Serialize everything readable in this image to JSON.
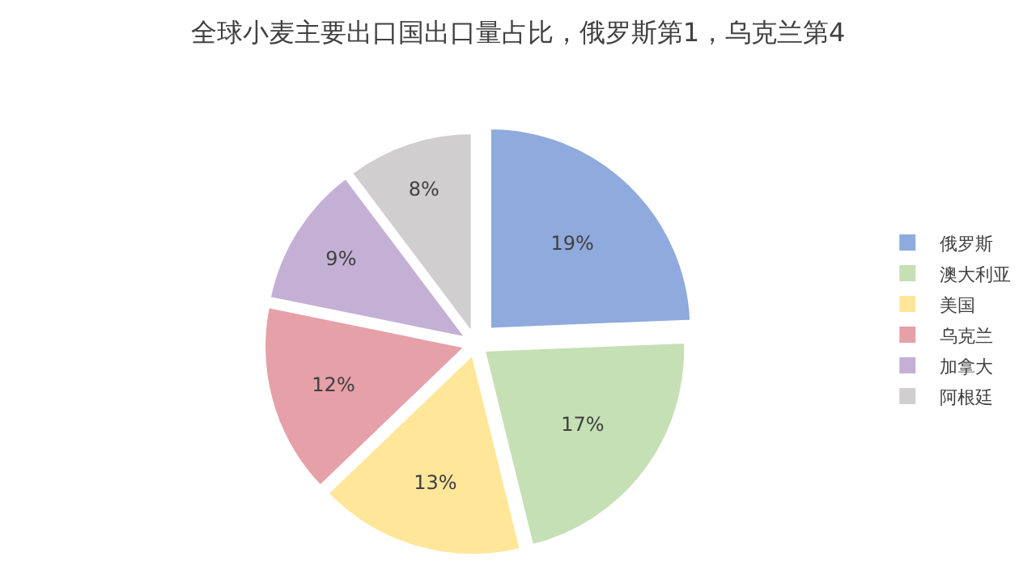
{
  "chart_data": {
    "type": "pie",
    "title": "全球小麦主要出口国出口量占比，俄罗斯第1，乌克兰第4",
    "categories": [
      "俄罗斯",
      "澳大利亚",
      "美国",
      "乌克兰",
      "加拿大",
      "阿根廷"
    ],
    "values": [
      19,
      17,
      13,
      12,
      9,
      8
    ],
    "value_labels": [
      "19%",
      "17%",
      "13%",
      "12%",
      "9%",
      "8%"
    ],
    "colors": [
      "#8faadc",
      "#c5e0b4",
      "#ffe699",
      "#e6a0a8",
      "#c5b0d5",
      "#d0cece"
    ],
    "legend": "right"
  }
}
